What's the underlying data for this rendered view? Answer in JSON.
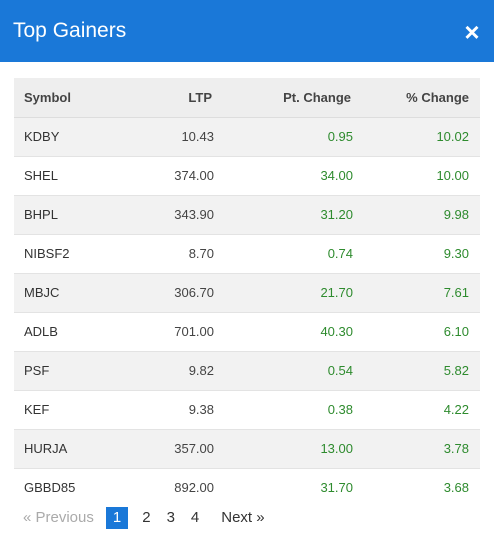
{
  "modal": {
    "title": "Top Gainers",
    "close_glyph": "×"
  },
  "table": {
    "headers": {
      "symbol": "Symbol",
      "ltp": "LTP",
      "pt_change": "Pt. Change",
      "pct_change": "% Change"
    },
    "rows": [
      {
        "symbol": "KDBY",
        "ltp": "10.43",
        "pt_change": "0.95",
        "pct_change": "10.02"
      },
      {
        "symbol": "SHEL",
        "ltp": "374.00",
        "pt_change": "34.00",
        "pct_change": "10.00"
      },
      {
        "symbol": "BHPL",
        "ltp": "343.90",
        "pt_change": "31.20",
        "pct_change": "9.98"
      },
      {
        "symbol": "NIBSF2",
        "ltp": "8.70",
        "pt_change": "0.74",
        "pct_change": "9.30"
      },
      {
        "symbol": "MBJC",
        "ltp": "306.70",
        "pt_change": "21.70",
        "pct_change": "7.61"
      },
      {
        "symbol": "ADLB",
        "ltp": "701.00",
        "pt_change": "40.30",
        "pct_change": "6.10"
      },
      {
        "symbol": "PSF",
        "ltp": "9.82",
        "pt_change": "0.54",
        "pct_change": "5.82"
      },
      {
        "symbol": "KEF",
        "ltp": "9.38",
        "pt_change": "0.38",
        "pct_change": "4.22"
      },
      {
        "symbol": "HURJA",
        "ltp": "357.00",
        "pt_change": "13.00",
        "pct_change": "3.78"
      },
      {
        "symbol": "GBBD85",
        "ltp": "892.00",
        "pt_change": "31.70",
        "pct_change": "3.68"
      }
    ]
  },
  "pagination": {
    "previous_label": "« Previous",
    "pages": [
      "1",
      "2",
      "3",
      "4"
    ],
    "active_page": "1",
    "next_label": "Next »"
  },
  "colors": {
    "header_bg": "#1a78d8",
    "positive": "#2e8b2e",
    "active_page_bg": "#1a78d8"
  }
}
